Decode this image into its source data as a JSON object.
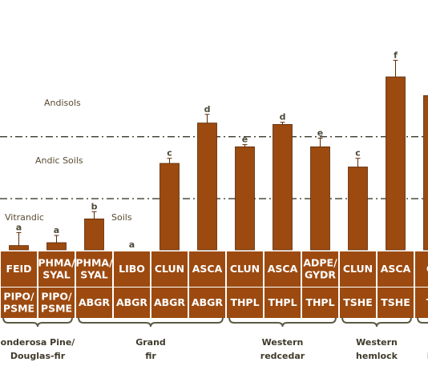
{
  "chart_data": {
    "type": "bar",
    "colors": {
      "bar": "#9c4a10",
      "bar_edge": "#5a2a08",
      "cell": "#9c4a10",
      "grid_line": "#3b3b2b",
      "text_dark": "#3f3a2a",
      "zone_text": "#5a4a32"
    },
    "zone_labels": [
      "Andisols",
      "Andic Soils",
      "Vitrandic",
      "Soils"
    ],
    "bars": [
      {
        "habitat": "FEID",
        "series": "PIPO/ PSME",
        "value": 0.6,
        "error": 1.8,
        "letter": "a"
      },
      {
        "habitat": "PHMA/ SYAL",
        "series": "PIPO/ PSME",
        "value": 1.0,
        "error": 1.0,
        "letter": "a"
      },
      {
        "habitat": "PHMA/ SYAL",
        "series": "ABGR",
        "value": 4.3,
        "error": 1.0,
        "letter": "b"
      },
      {
        "habitat": "LIBO",
        "series": "ABGR",
        "value": 0.0,
        "error": 0.0,
        "letter": "a"
      },
      {
        "habitat": "CLUN",
        "series": "ABGR",
        "value": 12.0,
        "error": 0.7,
        "letter": "c"
      },
      {
        "habitat": "ASCA",
        "series": "ABGR",
        "value": 17.6,
        "error": 1.2,
        "letter": "d"
      },
      {
        "habitat": "CLUN",
        "series": "THPL",
        "value": 14.3,
        "error": 0.3,
        "letter": "e"
      },
      {
        "habitat": "ASCA",
        "series": "THPL",
        "value": 17.4,
        "error": 0.3,
        "letter": "d"
      },
      {
        "habitat": "ADPE/ GYDR",
        "series": "THPL",
        "value": 14.3,
        "error": 1.2,
        "letter": "e"
      },
      {
        "habitat": "CLUN",
        "series": "TSHE",
        "value": 11.5,
        "error": 1.2,
        "letter": "c"
      },
      {
        "habitat": "ASCA",
        "series": "TSHE",
        "value": 24.0,
        "error": 2.3,
        "letter": "f"
      },
      {
        "habitat": "CL",
        "series": "TS",
        "value": 21.4,
        "error": 0.0,
        "letter": ""
      }
    ],
    "thresholds": [
      15.7,
      7.1
    ],
    "ylim": [
      0,
      30
    ],
    "groups": [
      {
        "label": "onderosa Pine/ Douglas-fir",
        "start": 0,
        "end": 1
      },
      {
        "label": "Grand fir",
        "start": 2,
        "end": 5
      },
      {
        "label": "Western redcedar",
        "start": 6,
        "end": 8
      },
      {
        "label": "Western hemlock",
        "start": 9,
        "end": 10
      },
      {
        "label": "M he",
        "start": 11,
        "end": 11
      }
    ]
  }
}
